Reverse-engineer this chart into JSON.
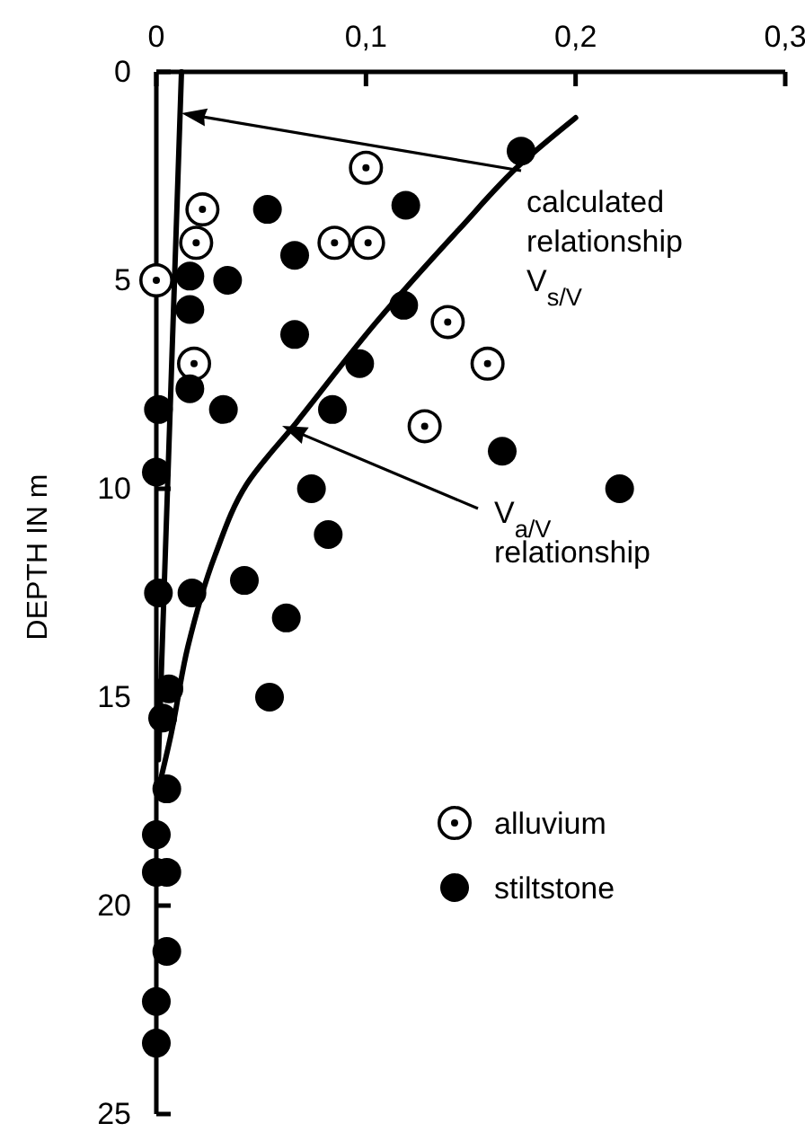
{
  "chart_data": {
    "type": "scatter",
    "ylabel": "DEPTH IN m",
    "xlim": [
      0,
      0.3
    ],
    "xticks": [
      {
        "value": 0,
        "label": "0"
      },
      {
        "value": 0.1,
        "label": "0,1"
      },
      {
        "value": 0.2,
        "label": "0,2"
      },
      {
        "value": 0.3,
        "label": "0,3"
      }
    ],
    "ylim": [
      25,
      0
    ],
    "yticks": [
      0,
      5,
      10,
      15,
      20,
      25
    ],
    "grid": false,
    "legend": "bottom right",
    "series": [
      {
        "name": "alluvium",
        "type": "scatter",
        "marker": "circle",
        "color": "#ffffff",
        "x": [
          0.1,
          0.022,
          0.019,
          0.085,
          0.101,
          0.0,
          0.139,
          0.158,
          0.018,
          0.128
        ],
        "values": [
          2.3,
          3.3,
          4.1,
          4.1,
          4.1,
          5.0,
          6.0,
          7.0,
          7.0,
          8.5
        ]
      },
      {
        "name": "stiltstone",
        "type": "scatter",
        "marker": "circle",
        "color": "#000000",
        "x": [
          0.174,
          0.053,
          0.119,
          0.066,
          0.016,
          0.034,
          0.016,
          0.118,
          0.066,
          0.097,
          0.016,
          0.032,
          0.084,
          0.001,
          0.165,
          0.0,
          0.074,
          0.221,
          0.082,
          0.017,
          0.001,
          0.042,
          0.062,
          0.054,
          0.006,
          0.003,
          0.005,
          0.0,
          0.0,
          0.005,
          0.005,
          0.0,
          0.0
        ],
        "values": [
          1.9,
          3.3,
          3.2,
          4.4,
          4.9,
          5.0,
          5.7,
          5.6,
          6.3,
          7.0,
          7.6,
          8.1,
          8.1,
          8.1,
          9.1,
          9.6,
          10.0,
          10.0,
          11.1,
          12.5,
          12.5,
          12.2,
          13.1,
          15.0,
          14.8,
          15.5,
          17.2,
          18.3,
          19.2,
          19.2,
          21.1,
          22.3,
          23.3
        ]
      },
      {
        "type": "line",
        "color": "#000000",
        "x": [
          0.2,
          0.174,
          0.144,
          0.105,
          0.067,
          0.043,
          0.028,
          0.015,
          0.007,
          0.001
        ],
        "values": [
          1.1,
          2.2,
          3.8,
          6.0,
          8.4,
          9.9,
          11.6,
          13.8,
          15.9,
          17.2
        ]
      },
      {
        "type": "line",
        "color": "#000000",
        "x": [
          0.012,
          0.001
        ],
        "values": [
          0,
          16.5
        ]
      }
    ],
    "annotations": [
      "calculated relationship V$_{s/V}$",
      "V$_{a/V}$ relationship"
    ]
  }
}
